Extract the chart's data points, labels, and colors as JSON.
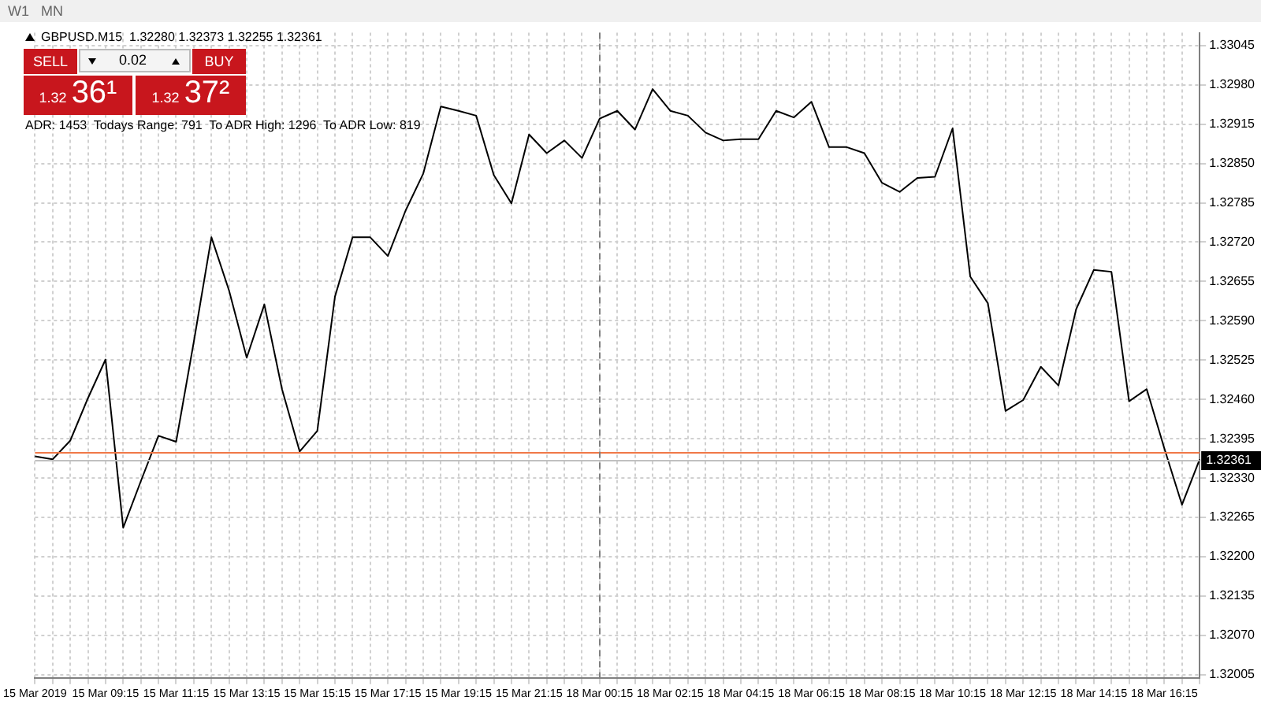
{
  "chart_data": {
    "type": "line",
    "title": "GBPUSD.M15  1.32280 1.32373 1.32255 1.32361",
    "categories": [
      "15 Mar 2019",
      null,
      null,
      null,
      "15 Mar 09:15",
      null,
      null,
      null,
      "15 Mar 11:15",
      null,
      null,
      null,
      "15 Mar 13:15",
      null,
      null,
      null,
      "15 Mar 15:15",
      null,
      null,
      null,
      "15 Mar 17:15",
      null,
      null,
      null,
      "15 Mar 19:15",
      null,
      null,
      null,
      "15 Mar 21:15",
      null,
      null,
      null,
      "18 Mar 00:15",
      null,
      null,
      null,
      "18 Mar 02:15",
      null,
      null,
      null,
      "18 Mar 04:15",
      null,
      null,
      null,
      "18 Mar 06:15",
      null,
      null,
      null,
      "18 Mar 08:15",
      null,
      null,
      null,
      "18 Mar 10:15",
      null,
      null,
      null,
      "18 Mar 12:15",
      null,
      null,
      null,
      "18 Mar 14:15",
      null,
      null,
      null,
      "18 Mar 16:15",
      null,
      null
    ],
    "series": [
      {
        "color": "#000000",
        "values": [
          1.32366,
          1.32361,
          1.32392,
          1.32462,
          1.32526,
          1.32248,
          1.32325,
          1.324,
          1.3239,
          1.32555,
          1.32728,
          1.3264,
          1.32529,
          1.32617,
          1.32477,
          1.32374,
          1.32408,
          1.3263,
          1.32728,
          1.32728,
          1.32697,
          1.32772,
          1.32833,
          1.32944,
          1.32937,
          1.32929,
          1.32831,
          1.32784,
          1.32898,
          1.32867,
          1.32888,
          1.32859,
          1.32924,
          1.32937,
          1.32906,
          1.32973,
          1.32937,
          1.32929,
          1.32901,
          1.32888,
          1.3289,
          1.3289,
          1.32937,
          1.32926,
          1.32952,
          1.32877,
          1.32877,
          1.32867,
          1.32818,
          1.32803,
          1.32826,
          1.32828,
          1.32908,
          1.32663,
          1.32619,
          1.32441,
          1.32459,
          1.32514,
          1.32483,
          1.32609,
          1.32674,
          1.32671,
          1.32457,
          1.32477,
          1.32379,
          1.32286,
          1.32361
        ]
      }
    ],
    "ylim": [
      1.32,
      1.33066
    ],
    "yticks": [
      {
        "value": 1.33045,
        "label": "1.33045"
      },
      {
        "value": 1.3298,
        "label": "1.32980"
      },
      {
        "value": 1.32915,
        "label": "1.32915"
      },
      {
        "value": 1.3285,
        "label": "1.32850"
      },
      {
        "value": 1.32785,
        "label": "1.32785"
      },
      {
        "value": 1.3272,
        "label": "1.32720"
      },
      {
        "value": 1.32655,
        "label": "1.32655"
      },
      {
        "value": 1.3259,
        "label": "1.32590"
      },
      {
        "value": 1.32525,
        "label": "1.32525"
      },
      {
        "value": 1.3246,
        "label": "1.32460"
      },
      {
        "value": 1.32395,
        "label": "1.32395"
      },
      {
        "value": 1.3233,
        "label": "1.32330"
      },
      {
        "value": 1.32265,
        "label": "1.32265"
      },
      {
        "value": 1.322,
        "label": "1.32200"
      },
      {
        "value": 1.32135,
        "label": "1.32135"
      },
      {
        "value": 1.3207,
        "label": "1.32070"
      },
      {
        "value": 1.32005,
        "label": "1.32005"
      }
    ],
    "grid": true,
    "marker": "none",
    "line_style": "solid",
    "ref_lines": [
      {
        "axis": "y",
        "value": 1.32372,
        "color": "#f07848"
      },
      {
        "axis": "y",
        "value": 1.32361,
        "label": "1.32361",
        "color": "#c0c0c0"
      },
      {
        "axis": "x",
        "value": "18 Mar 00:15",
        "color": "#808080",
        "line_style": "dashed"
      }
    ],
    "annotations": [
      "W1",
      "MN",
      "SELL",
      "0.02",
      "BUY",
      "1.32",
      "36¹",
      "1.32",
      "37²",
      "ADR: 1453  Todays Range: 791  To ADR High: 1296  To ADR Low: 819"
    ]
  }
}
